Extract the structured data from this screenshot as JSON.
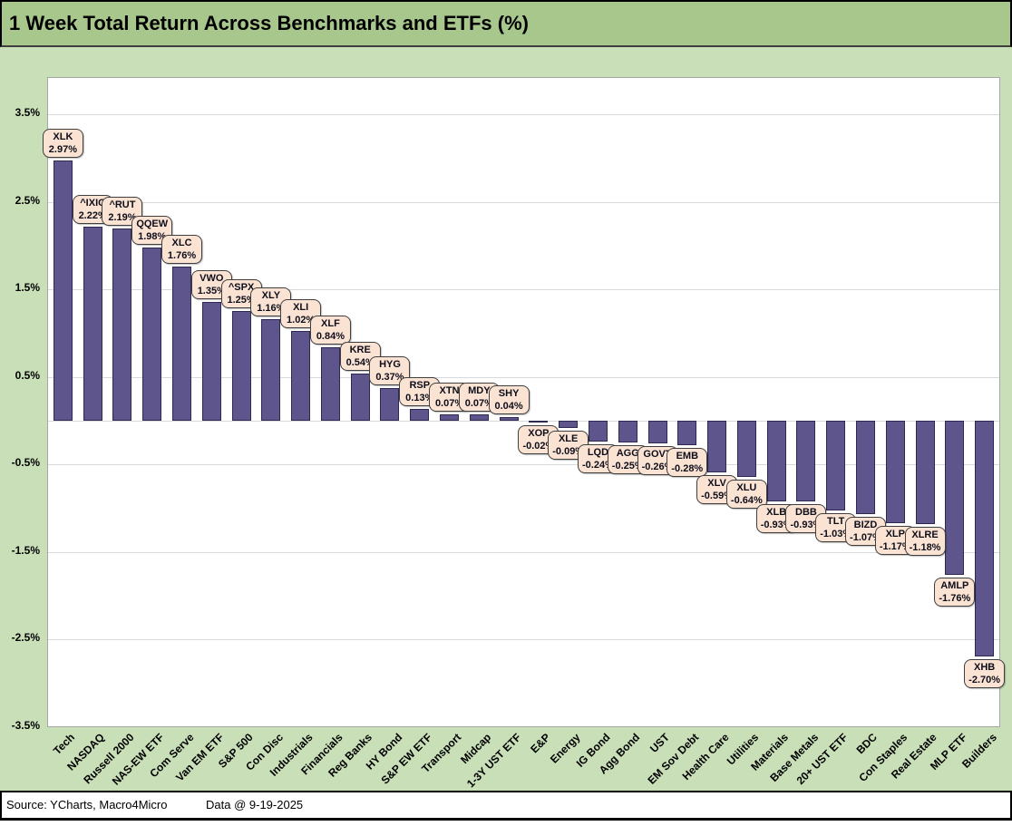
{
  "title": "1 Week Total Return Across Benchmarks and ETFs (%)",
  "footer": {
    "source": "Source: YCharts, Macro4Micro",
    "data_date": "Data @ 9-19-2025"
  },
  "colors": {
    "title_band": "#A7C78C",
    "body_band": "#C9DFB8",
    "bar_fill": "#5D558B",
    "bar_border": "#2E2950",
    "label_box_fill": "#FBE3D3",
    "label_box_border": "#3F3F3F",
    "gridline": "#D9D9D9",
    "plot_border": "#A6A6A6"
  },
  "chart_data": {
    "type": "bar",
    "title": "1 Week Total Return Across Benchmarks and ETFs (%)",
    "xlabel": "",
    "ylabel": "",
    "ylim": [
      -3.5,
      3.9
    ],
    "yticks": [
      3.5,
      2.5,
      1.5,
      0.5,
      -0.5,
      -1.5,
      -2.5,
      -3.5
    ],
    "ytick_format": "percent",
    "grid": true,
    "legend": false,
    "bars": [
      {
        "category": "Tech",
        "ticker": "XLK",
        "value": 2.97,
        "display": "2.97%"
      },
      {
        "category": "NASDAQ",
        "ticker": "^IXIC",
        "value": 2.22,
        "display": "2.22%"
      },
      {
        "category": "Russell 2000",
        "ticker": "^RUT",
        "value": 2.19,
        "display": "2.19%"
      },
      {
        "category": "NAS-EW ETF",
        "ticker": "QQEW",
        "value": 1.98,
        "display": "1.98%"
      },
      {
        "category": "Com Serve",
        "ticker": "XLC",
        "value": 1.76,
        "display": "1.76%"
      },
      {
        "category": "Van EM ETF",
        "ticker": "VWO",
        "value": 1.35,
        "display": "1.35%"
      },
      {
        "category": "S&P 500",
        "ticker": "^SPX",
        "value": 1.25,
        "display": "1.25%"
      },
      {
        "category": "Con Disc",
        "ticker": "XLY",
        "value": 1.16,
        "display": "1.16%"
      },
      {
        "category": "Industrials",
        "ticker": "XLI",
        "value": 1.02,
        "display": "1.02%"
      },
      {
        "category": "Financials",
        "ticker": "XLF",
        "value": 0.84,
        "display": "0.84%"
      },
      {
        "category": "Reg Banks",
        "ticker": "KRE",
        "value": 0.54,
        "display": "0.54%"
      },
      {
        "category": "HY Bond",
        "ticker": "HYG",
        "value": 0.37,
        "display": "0.37%"
      },
      {
        "category": "S&P EW ETF",
        "ticker": "RSP",
        "value": 0.13,
        "display": "0.13%"
      },
      {
        "category": "Transport",
        "ticker": "XTN",
        "value": 0.07,
        "display": "0.07%"
      },
      {
        "category": "Midcap",
        "ticker": "MDY",
        "value": 0.07,
        "display": "0.07%"
      },
      {
        "category": "1-3Y UST ETF",
        "ticker": "SHY",
        "value": 0.04,
        "display": "0.04%"
      },
      {
        "category": "E&P",
        "ticker": "XOP",
        "value": -0.02,
        "display": "-0.02%"
      },
      {
        "category": "Energy",
        "ticker": "XLE",
        "value": -0.09,
        "display": "-0.09%"
      },
      {
        "category": "IG Bond",
        "ticker": "LQD",
        "value": -0.24,
        "display": "-0.24%"
      },
      {
        "category": "Agg Bond",
        "ticker": "AGG",
        "value": -0.25,
        "display": "-0.25%"
      },
      {
        "category": "UST",
        "ticker": "GOVT",
        "value": -0.26,
        "display": "-0.26%"
      },
      {
        "category": "EM Sov Debt",
        "ticker": "EMB",
        "value": -0.28,
        "display": "-0.28%"
      },
      {
        "category": "Health Care",
        "ticker": "XLV",
        "value": -0.59,
        "display": "-0.59%"
      },
      {
        "category": "Utilities",
        "ticker": "XLU",
        "value": -0.64,
        "display": "-0.64%"
      },
      {
        "category": "Materials",
        "ticker": "XLB",
        "value": -0.93,
        "display": "-0.93%"
      },
      {
        "category": "Base Metals",
        "ticker": "DBB",
        "value": -0.93,
        "display": "-0.93%"
      },
      {
        "category": "20+ UST ETF",
        "ticker": "TLT",
        "value": -1.03,
        "display": "-1.03%"
      },
      {
        "category": "BDC",
        "ticker": "BIZD",
        "value": -1.07,
        "display": "-1.07%"
      },
      {
        "category": "Con Staples",
        "ticker": "XLP",
        "value": -1.17,
        "display": "-1.17%"
      },
      {
        "category": "Real Estate",
        "ticker": "XLRE",
        "value": -1.18,
        "display": "-1.18%"
      },
      {
        "category": "MLP ETF",
        "ticker": "AMLP",
        "value": -1.76,
        "display": "-1.76%"
      },
      {
        "category": "Builders",
        "ticker": "XHB",
        "value": -2.7,
        "display": "-2.70%"
      }
    ]
  }
}
